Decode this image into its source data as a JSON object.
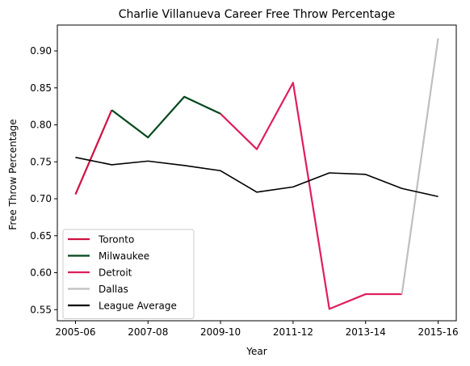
{
  "chart_data": {
    "type": "line",
    "title": "Charlie Villanueva Career Free Throw Percentage",
    "xlabel": "Year",
    "ylabel": "Free Throw Percentage",
    "x": [
      0,
      1,
      2,
      3,
      4,
      5,
      6,
      7,
      8,
      9,
      10
    ],
    "x_tick_positions": [
      0,
      2,
      4,
      6,
      8,
      10
    ],
    "x_tick_labels": [
      "2005-06",
      "2007-08",
      "2009-10",
      "2011-12",
      "2013-14",
      "2015-16"
    ],
    "y_ticks": [
      0.55,
      0.6,
      0.65,
      0.7,
      0.75,
      0.8,
      0.85,
      0.9
    ],
    "y_tick_labels": [
      "0.55",
      "0.60",
      "0.65",
      "0.70",
      "0.75",
      "0.80",
      "0.85",
      "0.90"
    ],
    "xlim": [
      -0.5,
      10.5
    ],
    "ylim": [
      0.535,
      0.935
    ],
    "grid": false,
    "legend_position": "lower-left",
    "series": [
      {
        "name": "Toronto",
        "color": "#ce1141",
        "points": [
          [
            0,
            0.706
          ],
          [
            1,
            0.82
          ]
        ]
      },
      {
        "name": "Milwaukee",
        "color": "#00471b",
        "points": [
          [
            1,
            0.82
          ],
          [
            2,
            0.783
          ],
          [
            3,
            0.838
          ],
          [
            4,
            0.815
          ]
        ]
      },
      {
        "name": "Detroit",
        "color": "#e01e5a",
        "points": [
          [
            4,
            0.815
          ],
          [
            5,
            0.767
          ],
          [
            6,
            0.857
          ],
          [
            7,
            0.551
          ],
          [
            8,
            0.571
          ],
          [
            9,
            0.571
          ]
        ]
      },
      {
        "name": "Dallas",
        "color": "#bfbfbf",
        "points": [
          [
            9,
            0.571
          ],
          [
            10,
            0.917
          ]
        ]
      },
      {
        "name": "League Average",
        "color": "#000000",
        "points": [
          [
            0,
            0.756
          ],
          [
            1,
            0.746
          ],
          [
            2,
            0.751
          ],
          [
            3,
            0.745
          ],
          [
            4,
            0.738
          ],
          [
            5,
            0.709
          ],
          [
            6,
            0.716
          ],
          [
            7,
            0.735
          ],
          [
            8,
            0.733
          ],
          [
            9,
            0.714
          ],
          [
            10,
            0.703
          ]
        ]
      }
    ]
  }
}
